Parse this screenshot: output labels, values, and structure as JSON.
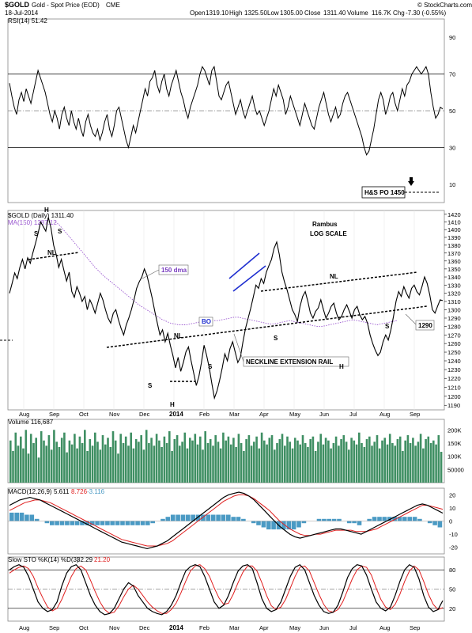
{
  "header": {
    "symbol": "$GOLD",
    "name": "Gold - Spot Price (EOD)",
    "exchange": "CME",
    "date": "18-Jul-2014",
    "open_label": "Open",
    "open": "1319.10",
    "high_label": "High",
    "high": "1325.50",
    "low_label": "Low",
    "low": "1305.00",
    "close_label": "Close",
    "close": "1311.40",
    "volume_label": "Volume",
    "volume": "116.7K",
    "chg_label": "Chg",
    "chg": "-7.30 (-0.55%)",
    "watermark": "© StockCharts.com"
  },
  "colors": {
    "price": "#000000",
    "ma": "#9b59d0",
    "volume": "#3f8f63",
    "macd_hist": "#4a9ac4",
    "signal": "#e02020",
    "trendline": "#000000",
    "wedge": "#1f2fd0",
    "grid": "#999999"
  },
  "chart_data": [
    {
      "type": "line",
      "name": "RSI panel",
      "legend": "RSI(14) 51.42",
      "ylim": [
        0,
        100
      ],
      "ticks": [
        "90",
        "70",
        "50",
        "30",
        "10"
      ],
      "reference_lines": [
        70,
        30
      ],
      "midline": 50,
      "values": [
        65,
        58,
        52,
        48,
        56,
        60,
        55,
        62,
        58,
        54,
        60,
        66,
        72,
        68,
        64,
        60,
        54,
        48,
        44,
        50,
        46,
        40,
        48,
        52,
        46,
        42,
        50,
        44,
        40,
        46,
        40,
        36,
        44,
        48,
        42,
        38,
        36,
        40,
        34,
        38,
        44,
        48,
        40,
        36,
        42,
        50,
        52,
        46,
        40,
        34,
        30,
        36,
        42,
        38,
        44,
        50,
        56,
        62,
        58,
        66,
        68,
        72,
        64,
        60,
        66,
        70,
        62,
        58,
        64,
        68,
        72,
        66,
        60,
        56,
        50,
        46,
        52,
        56,
        60,
        64,
        70,
        74,
        72,
        68,
        64,
        72,
        74,
        66,
        58,
        56,
        60,
        64,
        66,
        60,
        54,
        48,
        52,
        56,
        50,
        46,
        50,
        54,
        58,
        52,
        48,
        50,
        46,
        42,
        46,
        50,
        56,
        62,
        58,
        64,
        60,
        56,
        48,
        52,
        58,
        54,
        50,
        46,
        42,
        48,
        54,
        50,
        46,
        42,
        40,
        46,
        52,
        56,
        60,
        54,
        48,
        44,
        48,
        52,
        46,
        48,
        54,
        58,
        60,
        56,
        52,
        48,
        44,
        40,
        36,
        30,
        26,
        28,
        34,
        40,
        48,
        56,
        60,
        56,
        48,
        52,
        58,
        60,
        54,
        50,
        56,
        62,
        58,
        64,
        66,
        70,
        72,
        74,
        72,
        70,
        72,
        74,
        70,
        60,
        52,
        46,
        48,
        52,
        51
      ]
    },
    {
      "type": "line",
      "name": "Price panel",
      "legend": "$GOLD (Daily) 1311.40",
      "ma_legend": "MA(150) 1287.12",
      "scale": "log",
      "ylim": [
        1185,
        1425
      ],
      "ticks": [
        1190,
        1200,
        1210,
        1220,
        1230,
        1240,
        1250,
        1260,
        1270,
        1280,
        1290,
        1300,
        1310,
        1320,
        1330,
        1340,
        1350,
        1360,
        1370,
        1380,
        1390,
        1400,
        1410,
        1420
      ],
      "x_labels": [
        "Aug",
        "Sep",
        "Oct",
        "Nov",
        "Dec",
        "2014",
        "Feb",
        "Mar",
        "Apr",
        "May",
        "Jun",
        "Jul",
        "Aug",
        "Sep"
      ],
      "values": [
        1320,
        1332,
        1345,
        1338,
        1352,
        1362,
        1350,
        1364,
        1357,
        1370,
        1382,
        1395,
        1410,
        1404,
        1398,
        1416,
        1402,
        1380,
        1368,
        1352,
        1362,
        1348,
        1335,
        1346,
        1322,
        1315,
        1328,
        1320,
        1310,
        1316,
        1300,
        1312,
        1305,
        1296,
        1308,
        1320,
        1312,
        1300,
        1290,
        1284,
        1296,
        1300,
        1288,
        1278,
        1270,
        1282,
        1290,
        1300,
        1312,
        1326,
        1334,
        1340,
        1350,
        1342,
        1328,
        1314,
        1298,
        1284,
        1270,
        1276,
        1262,
        1272,
        1258,
        1246,
        1232,
        1244,
        1228,
        1238,
        1250,
        1256,
        1240,
        1226,
        1212,
        1222,
        1238,
        1258,
        1246,
        1232,
        1214,
        1198,
        1206,
        1218,
        1232,
        1248,
        1240,
        1254,
        1262,
        1250,
        1238,
        1244,
        1262,
        1278,
        1290,
        1302,
        1316,
        1330,
        1326,
        1338,
        1332,
        1346,
        1354,
        1362,
        1376,
        1384,
        1368,
        1346,
        1334,
        1324,
        1312,
        1300,
        1294,
        1286,
        1304,
        1316,
        1322,
        1310,
        1296,
        1290,
        1298,
        1302,
        1312,
        1300,
        1290,
        1296,
        1304,
        1308,
        1296,
        1288,
        1292,
        1300,
        1306,
        1298,
        1290,
        1300,
        1304,
        1294,
        1288,
        1292,
        1284,
        1270,
        1260,
        1252,
        1246,
        1250,
        1262,
        1270,
        1264,
        1276,
        1292,
        1310,
        1322,
        1316,
        1328,
        1320,
        1314,
        1326,
        1330,
        1322,
        1318,
        1328,
        1340,
        1332,
        1318,
        1300,
        1296,
        1304,
        1312,
        1311
      ],
      "ma150": [
        1410,
        1406,
        1400,
        1394,
        1388,
        1382,
        1376,
        1370,
        1364,
        1358,
        1352,
        1347,
        1342,
        1338,
        1334,
        1330,
        1326,
        1322,
        1318,
        1314,
        1310,
        1306,
        1303,
        1300,
        1297,
        1294,
        1291,
        1288,
        1286,
        1284,
        1283,
        1282,
        1282,
        1282,
        1283,
        1284,
        1285,
        1286,
        1287,
        1288,
        1287,
        1287,
        1288,
        1289,
        1290,
        1291,
        1291,
        1290,
        1289,
        1288,
        1287,
        1286,
        1285,
        1284,
        1283,
        1283,
        1284,
        1285,
        1286,
        1287,
        1286,
        1285,
        1284,
        1283,
        1282,
        1281,
        1280,
        1280,
        1281,
        1282,
        1283,
        1284,
        1285,
        1286,
        1287,
        1288,
        1287,
        1286,
        1285,
        1284,
        1283,
        1282,
        1283,
        1284,
        1285,
        1286,
        1287
      ]
    },
    {
      "type": "bar",
      "name": "Volume panel",
      "legend": "Volume 116,687",
      "ylim": [
        0,
        240000
      ],
      "ticks": [
        "200K",
        "150K",
        "100K",
        "50000"
      ],
      "values": [
        160,
        120,
        190,
        140,
        175,
        130,
        200,
        110,
        185,
        150,
        170,
        95,
        195,
        160,
        140,
        180,
        125,
        200,
        155,
        135,
        170,
        190,
        115,
        160,
        145,
        185,
        130,
        175,
        150,
        200,
        120,
        165,
        140,
        190,
        155,
        125,
        180,
        145,
        170,
        135,
        195,
        160,
        110,
        185,
        150,
        175,
        140,
        190,
        130,
        165,
        155,
        180,
        125,
        200,
        150,
        170,
        140,
        185,
        160,
        135,
        175,
        150,
        195,
        120,
        165,
        180,
        140,
        155,
        190,
        130,
        170,
        160,
        185,
        145,
        175,
        125,
        195,
        150,
        165,
        140,
        180,
        155,
        130,
        190,
        160,
        175,
        145,
        170,
        135,
        185,
        150,
        120,
        165,
        180,
        140,
        155,
        175,
        130,
        190,
        160,
        145,
        170,
        180,
        125,
        150,
        165,
        185,
        140,
        175,
        155,
        130,
        170,
        160,
        145,
        180,
        150,
        135,
        165,
        175,
        120,
        155,
        185,
        145,
        170,
        160,
        130,
        150,
        175,
        140,
        165,
        180,
        155,
        125,
        170,
        160,
        145,
        190,
        150,
        135,
        165,
        175,
        140,
        155,
        180,
        130,
        160,
        170,
        145,
        185,
        150,
        140,
        165,
        175,
        120,
        160,
        180,
        150,
        170,
        140,
        155,
        185,
        130,
        165,
        175,
        150,
        160,
        145,
        180,
        117
      ]
    },
    {
      "type": "line",
      "name": "MACD panel",
      "legend_main": "MACD(12,26,9)",
      "legend_values": [
        "5.611",
        "8.726",
        "-3.116"
      ],
      "ylim": [
        -25,
        25
      ],
      "ticks": [
        "20",
        "10",
        "0",
        "-10",
        "-20"
      ],
      "macd": [
        12,
        14,
        16,
        17,
        18,
        17,
        16,
        14,
        12,
        10,
        8,
        6,
        4,
        2,
        0,
        -2,
        -4,
        -6,
        -8,
        -10,
        -12,
        -14,
        -16,
        -17,
        -18,
        -19,
        -20,
        -21,
        -20,
        -19,
        -17,
        -15,
        -12,
        -9,
        -6,
        -3,
        0,
        3,
        6,
        9,
        12,
        15,
        18,
        20,
        21,
        22,
        21,
        19,
        16,
        12,
        8,
        4,
        0,
        -4,
        -7,
        -10,
        -12,
        -13,
        -12,
        -11,
        -10,
        -9,
        -8,
        -7,
        -6,
        -6,
        -7,
        -8,
        -9,
        -10,
        -8,
        -6,
        -4,
        -2,
        0,
        2,
        4,
        6,
        8,
        10,
        12,
        13,
        12,
        10,
        8,
        6
      ],
      "signal": [
        8,
        10,
        12,
        14,
        15,
        16,
        16,
        15,
        14,
        12,
        10,
        8,
        6,
        4,
        2,
        0,
        -2,
        -4,
        -6,
        -8,
        -10,
        -12,
        -14,
        -15,
        -16,
        -17,
        -18,
        -19,
        -19,
        -19,
        -18,
        -17,
        -15,
        -12,
        -9,
        -6,
        -3,
        0,
        3,
        6,
        9,
        12,
        15,
        17,
        19,
        20,
        20,
        19,
        17,
        14,
        11,
        8,
        4,
        0,
        -3,
        -6,
        -8,
        -10,
        -11,
        -11,
        -10,
        -10,
        -9,
        -8,
        -7,
        -7,
        -7,
        -7,
        -8,
        -8,
        -8,
        -7,
        -6,
        -4,
        -2,
        0,
        2,
        4,
        6,
        8,
        10,
        12,
        12,
        11,
        10,
        9
      ]
    },
    {
      "type": "line",
      "name": "Slow STO panel",
      "legend_main": "Slow STO %K(14) %D(3)",
      "legend_values": [
        "32.29",
        "21.20"
      ],
      "ylim": [
        0,
        100
      ],
      "ticks": [
        "80",
        "50",
        "20"
      ],
      "reference_lines": [
        80,
        20
      ],
      "midline": 50,
      "k": [
        80,
        85,
        88,
        84,
        70,
        50,
        30,
        20,
        15,
        18,
        30,
        55,
        75,
        85,
        88,
        80,
        60,
        40,
        25,
        15,
        10,
        12,
        20,
        35,
        50,
        60,
        55,
        40,
        30,
        20,
        15,
        12,
        10,
        15,
        25,
        40,
        60,
        78,
        85,
        88,
        85,
        70,
        50,
        30,
        20,
        25,
        40,
        60,
        78,
        86,
        88,
        82,
        60,
        35,
        20,
        15,
        18,
        30,
        50,
        70,
        84,
        88,
        80,
        60,
        40,
        25,
        15,
        12,
        14,
        25,
        45,
        68,
        82,
        88,
        86,
        72,
        50,
        30,
        20,
        16,
        22,
        40,
        62,
        80,
        88,
        84,
        66,
        40,
        22,
        15,
        18,
        32
      ],
      "d": [
        75,
        80,
        84,
        86,
        82,
        70,
        52,
        36,
        22,
        16,
        20,
        34,
        52,
        70,
        82,
        86,
        80,
        64,
        46,
        30,
        18,
        12,
        14,
        24,
        38,
        50,
        56,
        50,
        40,
        30,
        22,
        16,
        12,
        12,
        18,
        28,
        44,
        62,
        78,
        86,
        88,
        82,
        70,
        52,
        36,
        26,
        28,
        42,
        60,
        76,
        86,
        86,
        78,
        60,
        40,
        24,
        18,
        22,
        34,
        52,
        70,
        84,
        86,
        78,
        60,
        42,
        26,
        16,
        14,
        18,
        30,
        48,
        66,
        80,
        86,
        84,
        72,
        52,
        34,
        22,
        18,
        26,
        42,
        62,
        78,
        86,
        80,
        62,
        42,
        26,
        18,
        21
      ]
    }
  ],
  "annotations": {
    "po_label": "H&S PO 1450",
    "rambus": "Rambus",
    "log_scale": "LOG SCALE",
    "dma_label": "150 dma",
    "bo_label": "BO",
    "nl_label": "NL",
    "neckline_rail": "NECKLINE EXTENSION RAIL",
    "price_1290": "1290",
    "h": "H",
    "s": "S"
  }
}
